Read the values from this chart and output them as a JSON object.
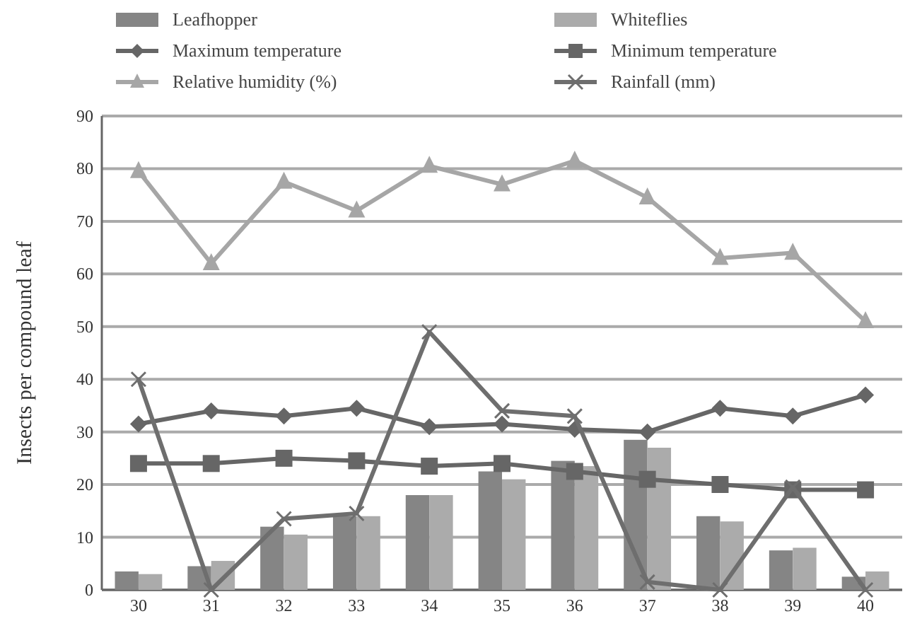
{
  "chart_data": {
    "type": "bar",
    "ylabel": "Insects per compound leaf",
    "categories": [
      "30",
      "31",
      "32",
      "33",
      "34",
      "35",
      "36",
      "37",
      "38",
      "39",
      "40"
    ],
    "ylim": [
      0,
      90
    ],
    "yticks": [
      0,
      10,
      20,
      30,
      40,
      50,
      60,
      70,
      80,
      90
    ],
    "grid": "y",
    "legend": "top",
    "series": [
      {
        "name": "Leafhopper",
        "color": "#858585",
        "values": [
          3.5,
          4.5,
          12,
          14,
          18,
          22.5,
          24.5,
          28.5,
          14,
          7.5,
          2.5
        ]
      },
      {
        "name": "Whiteflies",
        "color": "#ababab",
        "values": [
          3,
          5.5,
          10.5,
          14,
          18,
          21,
          23.5,
          27,
          13,
          8,
          3.5
        ]
      },
      {
        "name": "Maximum temperature",
        "type": "line",
        "marker": "diamond",
        "color": "#666666",
        "values": [
          31.5,
          34,
          33,
          34.5,
          31,
          31.5,
          30.5,
          30,
          34.5,
          33,
          37
        ]
      },
      {
        "name": "Minimum temperature",
        "type": "line",
        "marker": "square",
        "color": "#666666",
        "values": [
          24,
          24,
          25,
          24.5,
          23.5,
          24,
          22.5,
          21,
          20,
          19,
          19
        ]
      },
      {
        "name": "Relative humidity (%)",
        "type": "line",
        "marker": "triangle",
        "color": "#a6a6a6",
        "values": [
          79.5,
          62,
          77.5,
          72,
          80.5,
          77,
          81.5,
          74.5,
          63,
          64,
          51
        ]
      },
      {
        "name": "Rainfall (mm)",
        "type": "line",
        "marker": "cross",
        "color": "#6e6e6e",
        "values": [
          40,
          0,
          13.5,
          14.5,
          49,
          34,
          33,
          1.5,
          0,
          19.5,
          0
        ]
      }
    ]
  }
}
